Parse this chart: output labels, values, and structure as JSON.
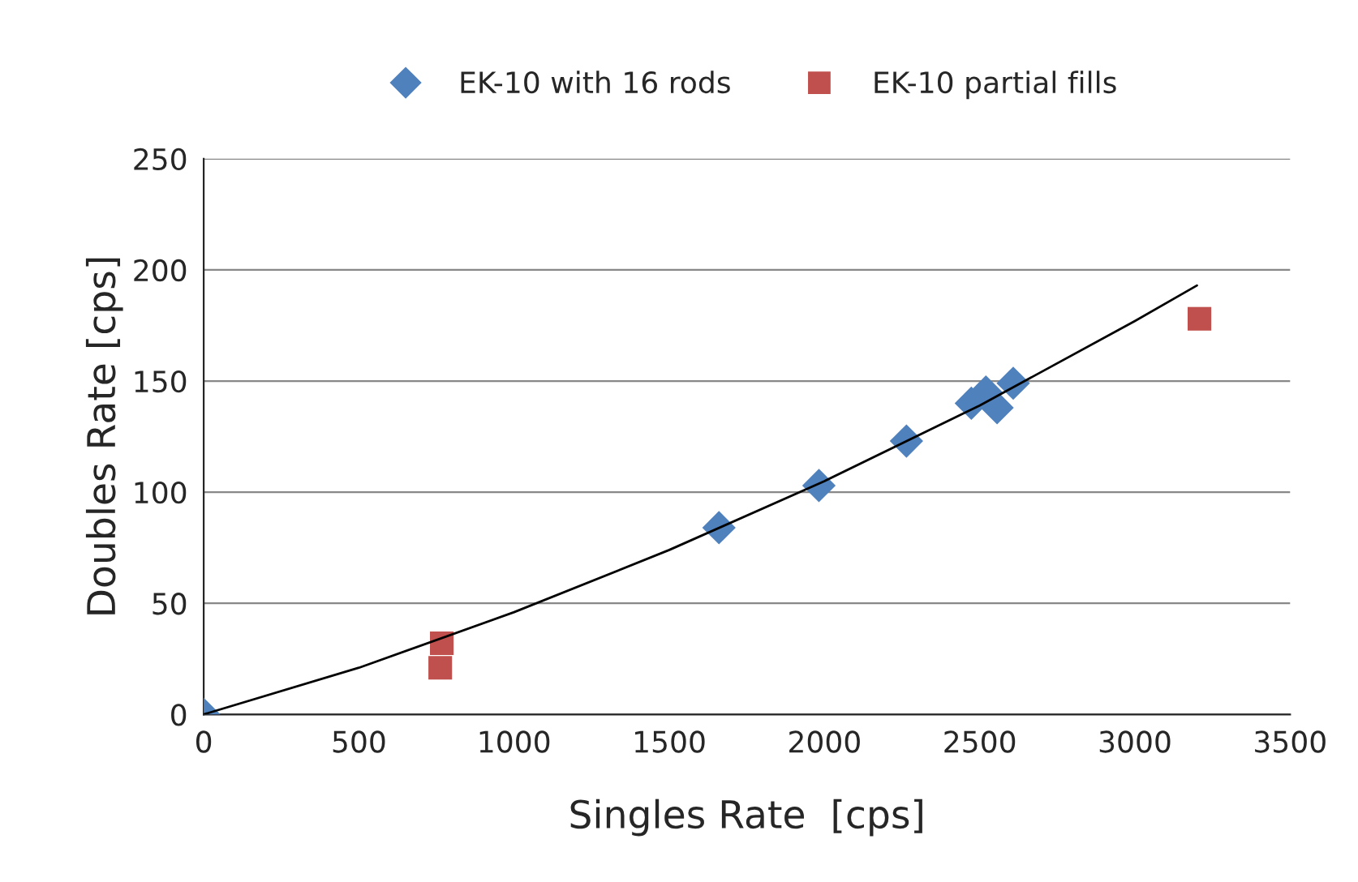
{
  "chart_data": {
    "type": "scatter",
    "xlabel": "Singles Rate  [cps]",
    "ylabel": "Doubles Rate [cps]",
    "xlim": [
      0,
      3500
    ],
    "xticks": [
      0,
      500,
      1000,
      1500,
      2000,
      2500,
      3000,
      3500
    ],
    "ylim": [
      0,
      250
    ],
    "yticks": [
      0,
      50,
      100,
      150,
      200,
      250
    ],
    "grid": "y",
    "legend": "top",
    "series": [
      {
        "type": "line",
        "color": "#000000",
        "marker": "none",
        "line_style": "solid",
        "x": [
          0,
          500,
          1000,
          1500,
          2000,
          2500,
          3000,
          3200
        ],
        "values": [
          0,
          21,
          46,
          74,
          105,
          139,
          177,
          193
        ]
      },
      {
        "name": "EK-10 with 16 rods",
        "color": "#4f81bd",
        "marker": "diamond",
        "x": [
          0,
          1660,
          1982,
          2264,
          2473,
          2520,
          2556,
          2608
        ],
        "values": [
          0,
          84,
          103,
          123,
          140,
          145,
          138,
          149
        ]
      },
      {
        "name": "EK-10 partial fills",
        "color": "#c0504d",
        "marker": "square",
        "x": [
          767,
          762,
          3208
        ],
        "values": [
          32,
          21,
          178
        ]
      }
    ]
  }
}
